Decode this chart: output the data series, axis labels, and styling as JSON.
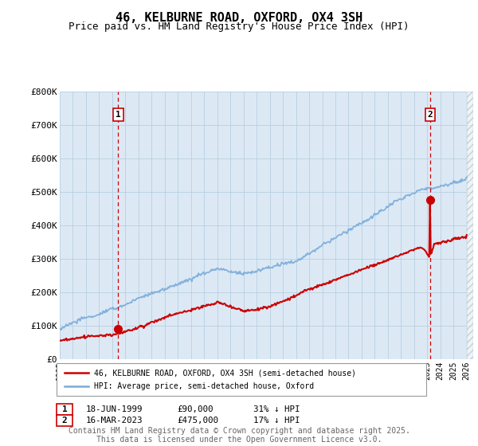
{
  "title": "46, KELBURNE ROAD, OXFORD, OX4 3SH",
  "subtitle": "Price paid vs. HM Land Registry's House Price Index (HPI)",
  "ylim": [
    0,
    800000
  ],
  "yticks": [
    0,
    100000,
    200000,
    300000,
    400000,
    500000,
    600000,
    700000,
    800000
  ],
  "ytick_labels": [
    "£0",
    "£100K",
    "£200K",
    "£300K",
    "£400K",
    "£500K",
    "£600K",
    "£700K",
    "£800K"
  ],
  "xlim_start": 1995.0,
  "xlim_end": 2026.5,
  "purchase1_x": 1999.46,
  "purchase1_y": 90000,
  "purchase2_x": 2023.21,
  "purchase2_y": 475000,
  "purchase1_date": "18-JUN-1999",
  "purchase1_price": "£90,000",
  "purchase1_hpi": "31% ↓ HPI",
  "purchase2_date": "16-MAR-2023",
  "purchase2_price": "£475,000",
  "purchase2_hpi": "17% ↓ HPI",
  "legend_line1": "46, KELBURNE ROAD, OXFORD, OX4 3SH (semi-detached house)",
  "legend_line2": "HPI: Average price, semi-detached house, Oxford",
  "footer": "Contains HM Land Registry data © Crown copyright and database right 2025.\nThis data is licensed under the Open Government Licence v3.0.",
  "line_color_red": "#cc0000",
  "line_color_blue": "#7aabdb",
  "plot_bg_color": "#dce9f5",
  "bg_color": "#ffffff",
  "grid_color": "#b8cfe0",
  "vline_color": "#cc0000",
  "title_fontsize": 11,
  "subtitle_fontsize": 9,
  "tick_fontsize": 8,
  "footer_fontsize": 7
}
